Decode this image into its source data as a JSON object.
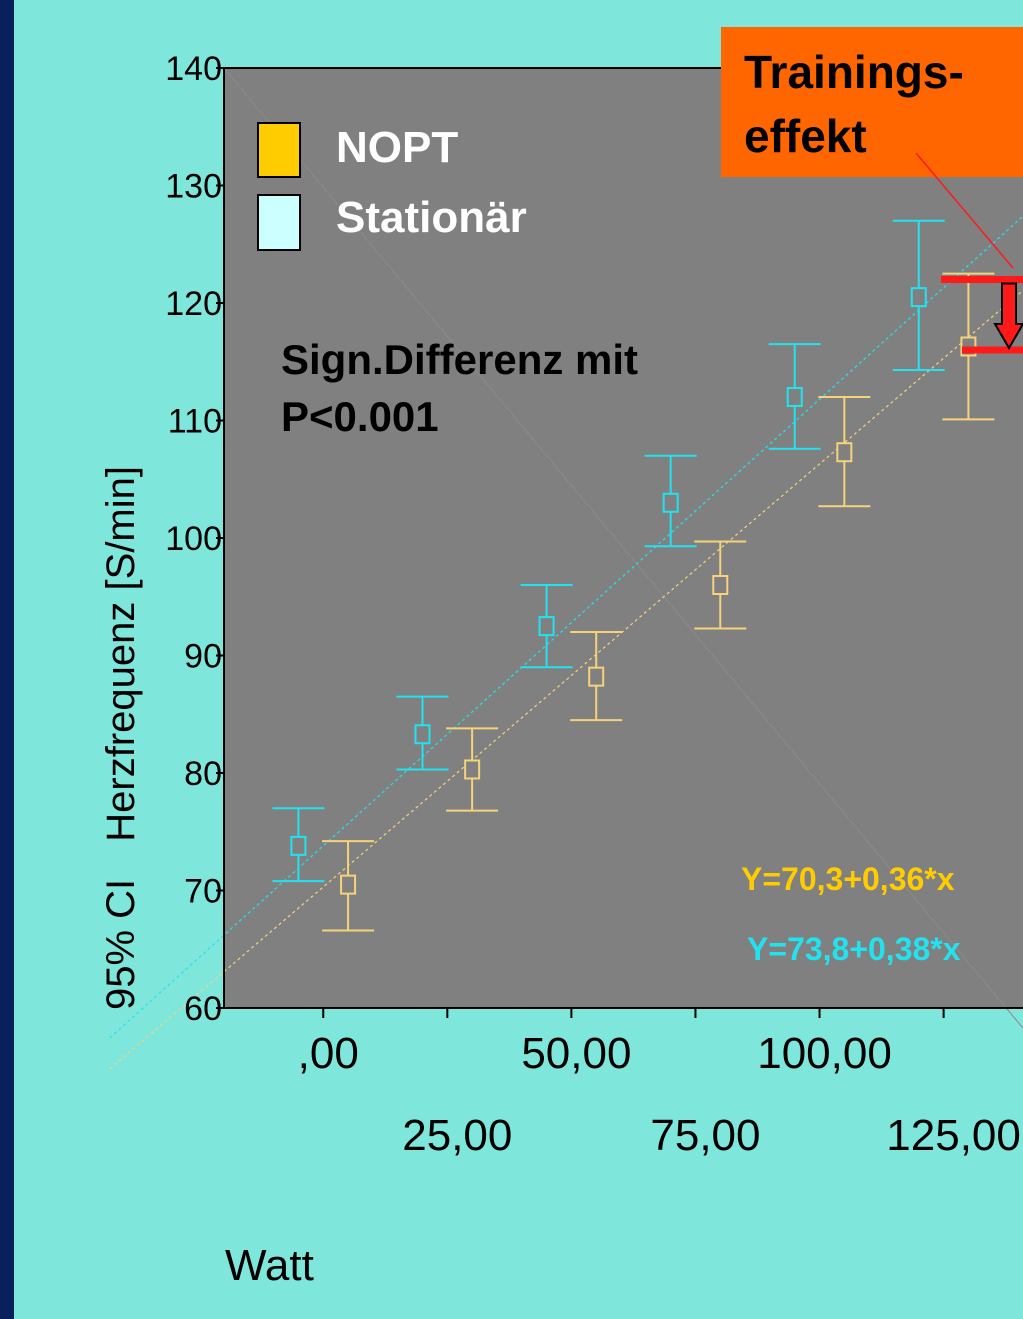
{
  "chart_data": {
    "type": "scatter",
    "title": "",
    "ylabel_prefix": "95% CI",
    "ylabel": "Herzfrequenz [S/min]",
    "xlabel": "Watt",
    "xlim": [
      -20,
      141
    ],
    "ylim": [
      60,
      140
    ],
    "y_ticks": [
      {
        "value": 60,
        "label": "60"
      },
      {
        "value": 70,
        "label": "70"
      },
      {
        "value": 80,
        "label": "80"
      },
      {
        "value": 90,
        "label": "90"
      },
      {
        "value": 100,
        "label": "100"
      },
      {
        "value": 110,
        "label": "110"
      },
      {
        "value": 120,
        "label": "120"
      },
      {
        "value": 130,
        "label": "130"
      },
      {
        "value": 140,
        "label": "140"
      }
    ],
    "x_ticks_row1": [
      {
        "value": 0,
        "label": ",00"
      },
      {
        "value": 50,
        "label": "50,00"
      },
      {
        "value": 100,
        "label": "100,00"
      }
    ],
    "x_ticks_row2": [
      {
        "value": 25,
        "label": "25,00"
      },
      {
        "value": 75,
        "label": "75,00"
      },
      {
        "value": 125,
        "label": "125,00"
      }
    ],
    "x_ticks_all": [
      0,
      25,
      50,
      75,
      100,
      125
    ],
    "series": [
      {
        "name": "Stationär",
        "color": "#22e2f0",
        "fill": "#ccffff",
        "points": [
          {
            "x": -5,
            "mean": 73.8,
            "lower": 70.8,
            "upper": 77.0
          },
          {
            "x": 20,
            "mean": 83.3,
            "lower": 80.3,
            "upper": 86.5
          },
          {
            "x": 45,
            "mean": 92.5,
            "lower": 89.0,
            "upper": 96.0
          },
          {
            "x": 70,
            "mean": 103.0,
            "lower": 99.3,
            "upper": 107.0
          },
          {
            "x": 95,
            "mean": 112.0,
            "lower": 107.6,
            "upper": 116.5
          },
          {
            "x": 120,
            "mean": 120.5,
            "lower": 114.3,
            "upper": 127.0
          }
        ],
        "regression": {
          "intercept": 73.8,
          "slope": 0.38,
          "label": "Y=73,8+0,38*x"
        }
      },
      {
        "name": "NOPT",
        "color": "#f6d27a",
        "fill": "#ffcc00",
        "points": [
          {
            "x": 5,
            "mean": 70.5,
            "lower": 66.6,
            "upper": 74.2
          },
          {
            "x": 30,
            "mean": 80.3,
            "lower": 76.8,
            "upper": 83.8
          },
          {
            "x": 55,
            "mean": 88.2,
            "lower": 84.5,
            "upper": 92.0
          },
          {
            "x": 80,
            "mean": 96.0,
            "lower": 92.3,
            "upper": 99.7
          },
          {
            "x": 105,
            "mean": 107.3,
            "lower": 102.7,
            "upper": 112.0
          },
          {
            "x": 130,
            "mean": 116.3,
            "lower": 110.1,
            "upper": 122.5
          }
        ],
        "regression": {
          "intercept": 70.3,
          "slope": 0.36,
          "label": "Y=70,3+0,36*x",
          "label_color": "#ffcc00"
        }
      }
    ],
    "legend": {
      "placement": "top-left",
      "entries": [
        {
          "label": "NOPT",
          "swatch": "#ffcc00"
        },
        {
          "label": "Stationär",
          "swatch": "#ccffff"
        }
      ]
    },
    "annotations": {
      "significance_line1": "Sign.Differenz mit",
      "significance_line2": "P<0.001",
      "effect_line1": "Trainings-",
      "effect_line2": "effekt",
      "effect_box_color": "#ff6600",
      "effect_marker_color": "#ff1a1a",
      "effect_upper_y": 122.0,
      "effect_lower_y": 116.0
    },
    "plot_background": "#808080",
    "page_background": "#7fe6dc"
  }
}
